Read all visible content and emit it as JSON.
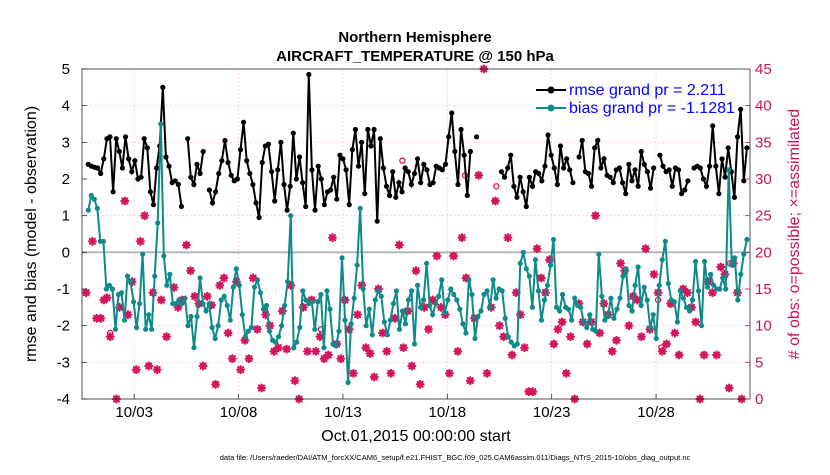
{
  "chart_data": {
    "type": "line",
    "title": "Northern Hemisphere",
    "subtitle": "AIRCRAFT_TEMPERATURE @ 150 hPa",
    "xlabel": "Oct.01,2015 00:00:00 start",
    "ylabel_left": "rmse and bias (model - observation)",
    "ylabel_right": "# of obs: o=possible; ×=assimilated",
    "footnote": "data file: /Users/raeder/DAI/ATM_forcXX/CAM6_setup/f.e21.FHIST_BGC.f09_025.CAM6assim.011/Diags_NTrS_2015-10/obs_diag_output.nc",
    "xlim": [
      0.5,
      32.5
    ],
    "ylim_left": [
      -4,
      5
    ],
    "ylim_right": [
      0,
      45
    ],
    "x_ticks": [
      {
        "value": 3,
        "label": "10/03"
      },
      {
        "value": 8,
        "label": "10/08"
      },
      {
        "value": 13,
        "label": "10/13"
      },
      {
        "value": 18,
        "label": "10/18"
      },
      {
        "value": 23,
        "label": "10/23"
      },
      {
        "value": 28,
        "label": "10/28"
      }
    ],
    "y_ticks_left": [
      "-4",
      "-3",
      "-2",
      "-1",
      "0",
      "1",
      "2",
      "3",
      "4",
      "5"
    ],
    "y_ticks_right": [
      "0",
      "5",
      "10",
      "15",
      "20",
      "25",
      "30",
      "35",
      "40",
      "45"
    ],
    "grid": true,
    "legend_position": "top-right",
    "colors": {
      "rmse": "#000000",
      "bias": "#0e8a8a",
      "obs": "#d5145e",
      "right_axis": "#c6145c",
      "grid": "#e8a3c2",
      "zero_line": "#b3b3b3",
      "legend_text": "#0000ff"
    },
    "series": [
      {
        "name": "rmse grand pr = 2.211",
        "axis": "left",
        "marker": "dot",
        "values": [
          2.4,
          2.35,
          2.32,
          2.3,
          2.15,
          2.55,
          3.1,
          3.15,
          1.65,
          3.1,
          2.75,
          2.3,
          3.15,
          2.55,
          2.2,
          2.5,
          2.0,
          2.05,
          3.1,
          2.85,
          1.65,
          1.3,
          2.3,
          2.9,
          4.5,
          2.6,
          2.35,
          1.9,
          1.95,
          1.85,
          1.25,
          null,
          3.1,
          2.05,
          1.85,
          2.4,
          2.15,
          2.75,
          null,
          1.7,
          1.35,
          1.65,
          2.15,
          2.5,
          3.05,
          2.45,
          2.1,
          1.95,
          2.0,
          2.8,
          3.55,
          2.5,
          2.15,
          1.85,
          1.35,
          0.95,
          2.45,
          2.9,
          2.95,
          2.2,
          1.4,
          2.25,
          3.0,
          1.85,
          1.15,
          1.8,
          3.25,
          2.0,
          2.6,
          1.9,
          1.25,
          4.85,
          2.25,
          1.15,
          2.35,
          2.0,
          1.3,
          1.65,
          1.7,
          2.05,
          1.45,
          2.65,
          2.55,
          2.25,
          1.3,
          2.8,
          3.35,
          2.35,
          3.0,
          1.6,
          3.35,
          2.9,
          3.35,
          0.85,
          3.1,
          2.3,
          1.8,
          1.55,
          2.2,
          1.5,
          1.9,
          1.65,
          2.3,
          2.2,
          1.85,
          2.15,
          2.55,
          1.9,
          2.4,
          2.25,
          1.85,
          1.9,
          2.35,
          2.3,
          2.25,
          2.4,
          3.15,
          3.8,
          2.75,
          1.85,
          3.35,
          2.65,
          1.55,
          2.75,
          null,
          3.15,
          null,
          null,
          null,
          null,
          null,
          null,
          null,
          2.2,
          2.05,
          2.3,
          2.65,
          1.8,
          1.5,
          2.05,
          1.65,
          1.25,
          2.05,
          1.8,
          2.2,
          2.15,
          1.95,
          2.35,
          3.2,
          2.65,
          2.3,
          1.85,
          2.9,
          2.3,
          2.55,
          2.25,
          1.9,
          null,
          2.6,
          3.05,
          2.2,
          2.15,
          1.8,
          2.85,
          3.05,
          2.3,
          2.55,
          2.1,
          2.05,
          1.9,
          2.25,
          2.3,
          1.9,
          1.6,
          2.4,
          1.95,
          2.25,
          1.8,
          2.75,
          2.4,
          2.2,
          1.75,
          2.3,
          null,
          2.65,
          2.35,
          2.2,
          2.25,
          1.8,
          2.3,
          2.25,
          1.6,
          1.7,
          1.95,
          null,
          2.3,
          2.35,
          2.3,
          2.0,
          1.8,
          2.35,
          3.45,
          2.35,
          1.6,
          2.55,
          2.05,
          2.85,
          2.2,
          1.5,
          3.15,
          3.9,
          1.95,
          2.85
        ]
      },
      {
        "name": "bias grand pr = -1.1281",
        "axis": "left",
        "marker": "dot",
        "values": [
          1.15,
          1.55,
          1.45,
          1.2,
          0.3,
          0.3,
          -1.0,
          -0.9,
          -1.0,
          -2.1,
          -1.15,
          -1.1,
          -1.85,
          -0.65,
          -0.8,
          -1.35,
          -2.05,
          -1.4,
          -0.05,
          -2.1,
          -1.7,
          -2.1,
          -0.65,
          0.8,
          3.5,
          -0.1,
          -0.9,
          -0.6,
          -1.4,
          -1.4,
          -1.3,
          -1.4,
          -1.25,
          -2.0,
          -1.75,
          -2.6,
          -1.75,
          -0.7,
          -1.4,
          -1.6,
          -1.4,
          -2.05,
          -2.35,
          -2.0,
          -1.3,
          -1.2,
          -1.45,
          -1.85,
          -0.95,
          -0.45,
          -0.9,
          -1.7,
          -2.3,
          -2.15,
          -2.05,
          -0.95,
          -0.75,
          -1.1,
          -1.55,
          -1.45,
          -2.15,
          -2.4,
          -2.45,
          -2.3,
          -2.0,
          -1.45,
          -0.8,
          1.0,
          -2.6,
          -2.45,
          -2.05,
          -1.05,
          -1.3,
          -1.4,
          -1.35,
          -2.1,
          -1.35,
          -1.15,
          -2.6,
          -1.05,
          -1.55,
          -2.5,
          -2.55,
          -2.15,
          -0.15,
          -1.85,
          -3.55,
          -1.95,
          -1.25,
          -0.35,
          1.2,
          -1.0,
          -2.0,
          -1.55,
          -2.25,
          -1.3,
          -1.05,
          -1.2,
          -1.9,
          -2.25,
          -1.85,
          -1.4,
          -1.05,
          -2.1,
          -1.6,
          -1.95,
          -1.3,
          -1.05,
          -2.5,
          -0.9,
          -1.5,
          -1.3,
          -0.3,
          -1.45,
          -1.7,
          -1.4,
          -1.2,
          -0.75,
          -1.65,
          -1.3,
          -1.0,
          -1.15,
          -1.3,
          -1.55,
          -1.95,
          -2.2,
          -0.75,
          -1.15,
          -2.35,
          -1.75,
          -1.6,
          -1.15,
          -1.05,
          -1.5,
          -0.75,
          -1.25,
          -1.0,
          -1.05,
          -1.8,
          -2.3,
          -2.45,
          -2.55,
          -2.5,
          -0.3,
          0.0,
          -0.45,
          -0.65,
          -1.5,
          -0.2,
          -1.05,
          -1.85,
          -1.3,
          -0.9,
          -0.35,
          0.35,
          -1.5,
          -1.6,
          -1.15,
          -1.5,
          -1.55,
          -1.85,
          -1.25,
          -1.45,
          -1.5,
          -1.9,
          -2.05,
          -1.7,
          -2.1,
          -2.15,
          -0.05,
          -1.2,
          -1.85,
          -1.75,
          -1.25,
          -1.8,
          -1.55,
          -1.25,
          -0.65,
          -0.45,
          -1.45,
          -1.6,
          -0.9,
          -0.4,
          -1.45,
          -0.95,
          -1.3,
          -2.05,
          -1.7,
          -2.35,
          -0.9,
          -0.2,
          0.3,
          -0.85,
          -1.3,
          -1.35,
          -1.9,
          -1.05,
          -1.25,
          -1.5,
          -1.6,
          -1.3,
          -0.25,
          -1.05,
          -2.0,
          -0.25,
          -0.95,
          -0.6,
          -0.9,
          -1.0,
          -1.0,
          -0.7,
          -1.0,
          2.25,
          -0.35,
          -0.15,
          -1.3,
          -0.6,
          -0.05,
          0.35
        ]
      },
      {
        "name": "obs assimilated",
        "axis": "right",
        "marker": "star",
        "points": [
          [
            0.7,
            14.5
          ],
          [
            1.0,
            21.5
          ],
          [
            1.2,
            11.0
          ],
          [
            1.4,
            11.0
          ],
          [
            1.55,
            13.5
          ],
          [
            1.7,
            13.8
          ],
          [
            1.85,
            8.5
          ],
          [
            2.15,
            0
          ],
          [
            2.3,
            12.5
          ],
          [
            2.55,
            27
          ],
          [
            2.7,
            11.5
          ],
          [
            2.9,
            16
          ],
          [
            3.1,
            4
          ],
          [
            3.3,
            21.5
          ],
          [
            3.5,
            25
          ],
          [
            3.7,
            4.5
          ],
          [
            3.9,
            14.5
          ],
          [
            4.1,
            4
          ],
          [
            4.3,
            13.5
          ],
          [
            4.55,
            8.5
          ],
          [
            4.9,
            15.2
          ],
          [
            5.1,
            12.5
          ],
          [
            5.3,
            13.5
          ],
          [
            5.5,
            21
          ],
          [
            5.7,
            17.5
          ],
          [
            5.9,
            14.0
          ],
          [
            6.1,
            13.0
          ],
          [
            6.3,
            4.5
          ],
          [
            6.5,
            14
          ],
          [
            6.7,
            12.8
          ],
          [
            6.9,
            2
          ],
          [
            7.1,
            15.5
          ],
          [
            7.3,
            16.5
          ],
          [
            7.5,
            9.0
          ],
          [
            7.7,
            5.5
          ],
          [
            7.9,
            16.0
          ],
          [
            8.1,
            4
          ],
          [
            8.3,
            8.0
          ],
          [
            8.5,
            5.5
          ],
          [
            8.7,
            16.5
          ],
          [
            8.9,
            9.5
          ],
          [
            9.1,
            1.5
          ],
          [
            9.3,
            11.5
          ],
          [
            9.5,
            10.0
          ],
          [
            9.7,
            6.5
          ],
          [
            9.9,
            7.0
          ],
          [
            10.1,
            12.0
          ],
          [
            10.3,
            6.8
          ],
          [
            10.5,
            15.5
          ],
          [
            10.7,
            2.5
          ],
          [
            10.9,
            0
          ],
          [
            11.1,
            12.5
          ],
          [
            11.3,
            6.5
          ],
          [
            11.5,
            13.5
          ],
          [
            11.7,
            6.5
          ],
          [
            11.9,
            8.5
          ],
          [
            12.1,
            5.5
          ],
          [
            12.3,
            6.0
          ],
          [
            12.5,
            22
          ],
          [
            12.7,
            7.5
          ],
          [
            12.9,
            5.5
          ],
          [
            13.1,
            13.5
          ],
          [
            13.3,
            9.5
          ],
          [
            13.5,
            3.5
          ],
          [
            13.7,
            11.5
          ],
          [
            13.9,
            15.5
          ],
          [
            14.1,
            7.0
          ],
          [
            14.3,
            6.2
          ],
          [
            14.5,
            3.0
          ],
          [
            14.7,
            15.0
          ],
          [
            14.9,
            9.0
          ],
          [
            15.1,
            6.5
          ],
          [
            15.3,
            3.5
          ],
          [
            15.5,
            11.0
          ],
          [
            15.7,
            21.0
          ],
          [
            15.9,
            7.0
          ],
          [
            16.1,
            12.0
          ],
          [
            16.3,
            4.5
          ],
          [
            16.5,
            17.5
          ],
          [
            16.7,
            2.0
          ],
          [
            16.9,
            12.5
          ],
          [
            17.1,
            9.5
          ],
          [
            17.3,
            13.5
          ],
          [
            17.5,
            19.5
          ],
          [
            17.7,
            12.5
          ],
          [
            17.9,
            11.5
          ],
          [
            18.1,
            3.5
          ],
          [
            18.3,
            19.5
          ],
          [
            18.5,
            6.5
          ],
          [
            18.7,
            22
          ],
          [
            18.9,
            16.5
          ],
          [
            19.1,
            2.5
          ],
          [
            19.3,
            11.0
          ],
          [
            19.5,
            30.5
          ],
          [
            19.75,
            45
          ],
          [
            19.9,
            3.5
          ],
          [
            20.1,
            12.5
          ],
          [
            20.3,
            27
          ],
          [
            20.5,
            10.0
          ],
          [
            20.7,
            8.5
          ],
          [
            20.9,
            22
          ],
          [
            21.1,
            6.0
          ],
          [
            21.3,
            14.5
          ],
          [
            21.5,
            11.5
          ],
          [
            21.7,
            7.0
          ],
          [
            21.9,
            1.0
          ],
          [
            22.1,
            1.0
          ],
          [
            22.3,
            20.5
          ],
          [
            22.5,
            16.5
          ],
          [
            22.7,
            14.5
          ],
          [
            22.9,
            19.0
          ],
          [
            23.1,
            7.5
          ],
          [
            23.3,
            9.5
          ],
          [
            23.5,
            10.5
          ],
          [
            23.7,
            3.5
          ],
          [
            23.9,
            8.5
          ],
          [
            24.1,
            0
          ],
          [
            24.3,
            13.0
          ],
          [
            24.5,
            10.5
          ],
          [
            24.7,
            7.5
          ],
          [
            24.9,
            10.5
          ],
          [
            25.1,
            25.0
          ],
          [
            25.3,
            9.0
          ],
          [
            25.5,
            13.0
          ],
          [
            25.7,
            11.5
          ],
          [
            25.9,
            6.5
          ],
          [
            26.1,
            8.0
          ],
          [
            26.3,
            18.5
          ],
          [
            26.5,
            17.5
          ],
          [
            26.7,
            10.0
          ],
          [
            26.9,
            14.0
          ],
          [
            27.1,
            13.5
          ],
          [
            27.3,
            8.5
          ],
          [
            27.5,
            20.5
          ],
          [
            27.7,
            9.5
          ],
          [
            27.9,
            17.0
          ],
          [
            28.1,
            14.5
          ],
          [
            28.3,
            6.5
          ],
          [
            28.5,
            7.5
          ],
          [
            28.7,
            13.0
          ],
          [
            28.9,
            9.0
          ],
          [
            29.1,
            6.0
          ],
          [
            29.3,
            15.0
          ],
          [
            29.5,
            14.5
          ],
          [
            29.7,
            12.5
          ],
          [
            29.9,
            10.5
          ],
          [
            30.1,
            0
          ],
          [
            30.3,
            6.0
          ],
          [
            30.5,
            16.0
          ],
          [
            30.7,
            14.5
          ],
          [
            30.9,
            6.0
          ],
          [
            31.1,
            18.0
          ],
          [
            31.3,
            17.0
          ],
          [
            31.5,
            1.5
          ],
          [
            31.7,
            18.5
          ],
          [
            31.9,
            14.5
          ],
          [
            32.1,
            0
          ]
        ]
      },
      {
        "name": "obs possible",
        "axis": "right",
        "marker": "circle",
        "points": [
          [
            1.85,
            9.0
          ],
          [
            11.95,
            9.5
          ],
          [
            15.85,
            32.5
          ],
          [
            18.85,
            30.5
          ],
          [
            20.35,
            29.0
          ],
          [
            28.1,
            13.5
          ],
          [
            28.25,
            7.0
          ],
          [
            31.55,
            18.5
          ]
        ]
      }
    ]
  }
}
